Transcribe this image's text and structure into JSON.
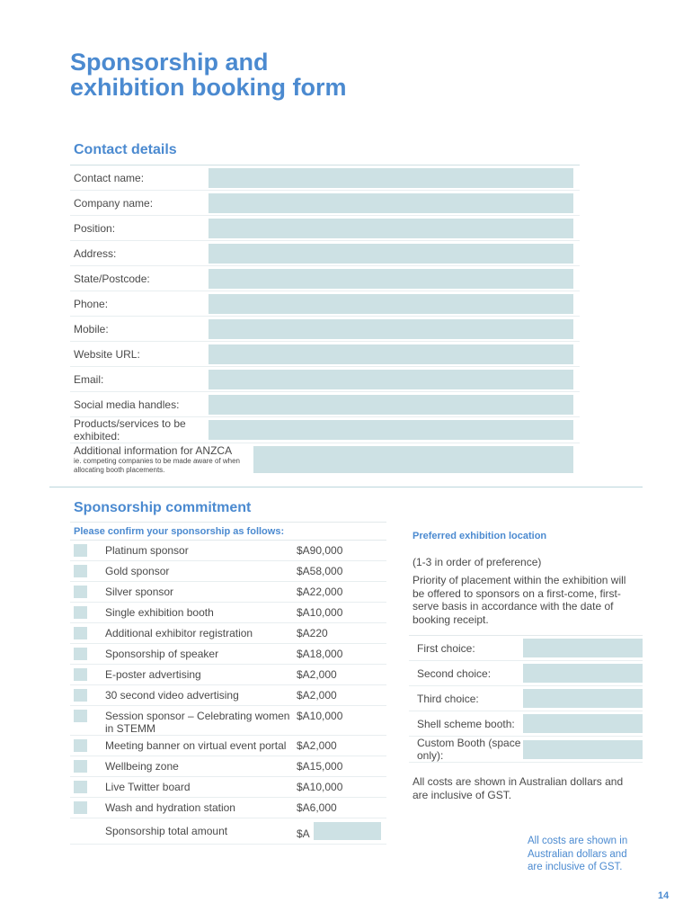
{
  "title_lines": [
    "Sponsorship and",
    "exhibition booking form"
  ],
  "contact": {
    "heading": "Contact details",
    "fields": [
      "Contact name:",
      "Company name:",
      "Position:",
      "Address:",
      "State/Postcode:",
      "Phone:",
      "Mobile:",
      "Website URL:",
      "Email:",
      "Social media handles:",
      "Products/services to be exhibited:"
    ],
    "additional": {
      "label": "Additional information for ANZCA",
      "note": "ie. competing companies to be made aware of when allocating booth placements."
    }
  },
  "sponsorship": {
    "heading": "Sponsorship commitment",
    "instruction": "Please confirm your sponsorship as follows:",
    "items": [
      {
        "name": "Platinum sponsor",
        "price": "$A90,000"
      },
      {
        "name": "Gold sponsor",
        "price": "$A58,000"
      },
      {
        "name": "Silver sponsor",
        "price": "$A22,000"
      },
      {
        "name": "Single exhibition booth",
        "price": "$A10,000"
      },
      {
        "name": "Additional exhibitor registration",
        "price": "$A220"
      },
      {
        "name": "Sponsorship of speaker",
        "price": "$A18,000"
      },
      {
        "name": "E-poster advertising",
        "price": "$A2,000"
      },
      {
        "name": "30 second video advertising",
        "price": "$A2,000"
      },
      {
        "name": "Session sponsor – Celebrating women in STEMM",
        "price": "$A10,000"
      },
      {
        "name": "Meeting banner on virtual event portal",
        "price": "$A2,000"
      },
      {
        "name": "Wellbeing zone",
        "price": "$A15,000"
      },
      {
        "name": "Live Twitter board",
        "price": "$A10,000"
      },
      {
        "name": "Wash and hydration station",
        "price": "$A6,000"
      }
    ],
    "total": {
      "label": "Sponsorship total amount",
      "prefix": "$A"
    }
  },
  "exhibition": {
    "heading": "Preferred exhibition location",
    "order_note": "(1-3 in order of preference)",
    "priority": "Priority of placement within the exhibition will be offered to sponsors on a first-come, first-serve basis in accordance with the date of booking receipt.",
    "choices": [
      "First choice:",
      "Second choice:",
      "Third choice:",
      "Shell scheme booth:",
      "Custom Booth (space only):"
    ],
    "gst_note": "All costs are shown in Australian dollars and are inclusive of GST."
  },
  "side_note": "All costs are shown in Australian dollars and are inclusive of GST.",
  "page_number": "14"
}
